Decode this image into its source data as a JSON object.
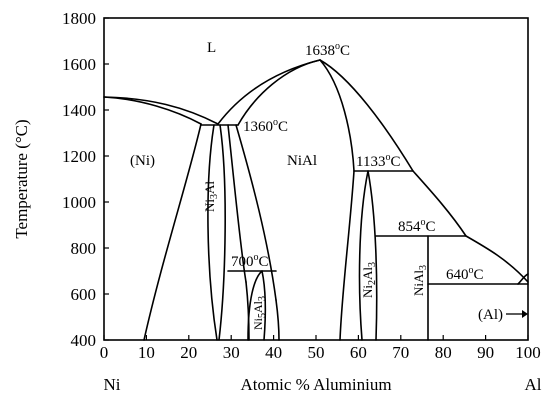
{
  "chart_data": {
    "type": "phase-diagram",
    "title": "",
    "xlabel": "Atomic % Aluminium",
    "ylabel": "Temperature (°C)",
    "xlim": [
      0,
      100
    ],
    "ylim": [
      400,
      1800
    ],
    "x_ticks": [
      "0",
      "10",
      "20",
      "30",
      "40",
      "50",
      "60",
      "70",
      "80",
      "90",
      "100"
    ],
    "y_ticks": [
      "400",
      "600",
      "800",
      "1000",
      "1200",
      "1400",
      "1600",
      "1800"
    ],
    "x_left_end_label": "Ni",
    "x_right_end_label": "Al",
    "phase_labels": [
      "L",
      "(Ni)",
      "NiAl",
      "(Al)"
    ],
    "compound_labels": {
      "ni3al": {
        "base": "Ni",
        "sub1": "3",
        "rest": "Al"
      },
      "ni5al3": {
        "base": "Ni",
        "sub1": "5",
        "mid": "Al",
        "sub2": "3"
      },
      "ni2al3": {
        "base": "Ni",
        "sub1": "2",
        "mid": "Al",
        "sub2": "3"
      },
      "nial3": {
        "base": "NiAl",
        "sub1": "3"
      }
    },
    "invariant_temperatures": [
      {
        "value": "1638",
        "unit": "C",
        "degree": "o"
      },
      {
        "value": "1360",
        "unit": "C",
        "degree": "o"
      },
      {
        "value": "1133",
        "unit": "C",
        "degree": "o"
      },
      {
        "value": "854",
        "unit": "C",
        "degree": "o"
      },
      {
        "value": "700",
        "unit": "C",
        "degree": "o"
      },
      {
        "value": "640",
        "unit": "C",
        "degree": "o"
      }
    ],
    "invariant_points": [
      {
        "x": 50,
        "y": 1638
      },
      {
        "x": 27,
        "y": 1360
      },
      {
        "x": 62,
        "y": 1133
      },
      {
        "x": 75,
        "y": 854
      },
      {
        "x": 32,
        "y": 700
      },
      {
        "x": 99,
        "y": 640
      }
    ],
    "grid": false
  }
}
